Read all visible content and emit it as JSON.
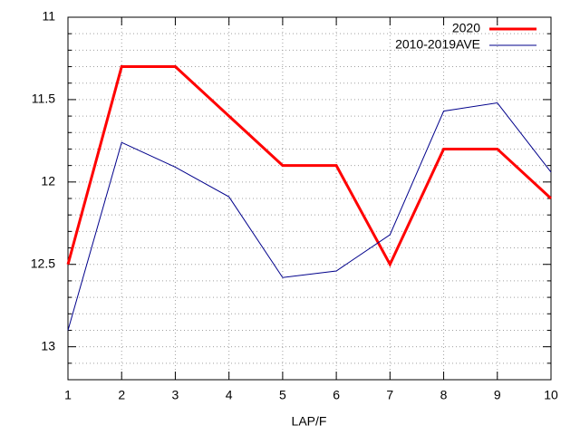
{
  "chart_data": {
    "type": "line",
    "x_label": "LAP/F",
    "x": [
      1,
      2,
      3,
      4,
      5,
      6,
      7,
      8,
      9,
      10
    ],
    "series": [
      {
        "name": "2020",
        "color": "#ff0000",
        "width": 3,
        "values": [
          12.5,
          11.3,
          11.3,
          11.6,
          11.9,
          11.9,
          12.5,
          11.8,
          11.8,
          12.1
        ]
      },
      {
        "name": "2010-2019AVE",
        "color": "#00008b",
        "width": 1,
        "values": [
          12.9,
          11.76,
          11.91,
          12.09,
          12.58,
          12.54,
          12.32,
          11.57,
          11.52,
          11.94
        ]
      }
    ],
    "xlim": [
      1,
      10
    ],
    "xticks": [
      1,
      2,
      3,
      4,
      5,
      6,
      7,
      8,
      9,
      10
    ],
    "ylim": [
      13.2,
      11
    ],
    "yticks": [
      11,
      11.5,
      12,
      12.5,
      13
    ],
    "y_minor_subdivisions": 5,
    "grid": true,
    "legend": "top-right"
  }
}
